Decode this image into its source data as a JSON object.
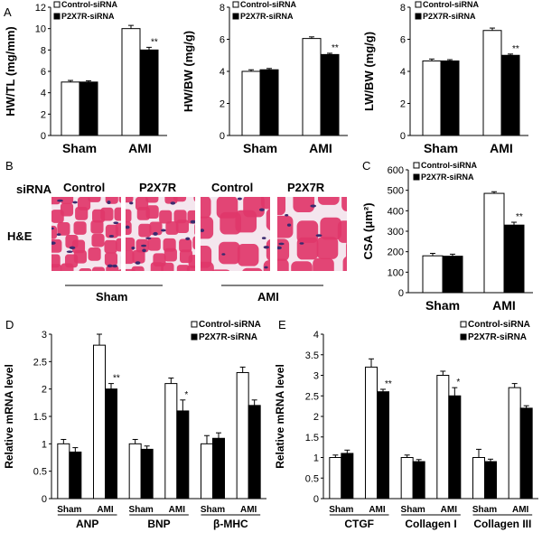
{
  "legend": {
    "control": "Control-siRNA",
    "p2x7r": "P2X7R-siRNA"
  },
  "panel_letters": [
    "A",
    "B",
    "C",
    "D",
    "E"
  ],
  "histology": {
    "row_label": "siRNA",
    "stain_label": "H&E",
    "columns": [
      "Control",
      "P2X7R",
      "Control",
      "P2X7R"
    ],
    "groups": [
      "Sham",
      "AMI"
    ]
  },
  "colors": {
    "control_fill": "#ffffff",
    "p2x7r_fill": "#000000",
    "stain_bg": "#e0376a",
    "membrane": "#f4e6ee",
    "nuclei": "#3b2a6e"
  },
  "chart_data": [
    {
      "id": "A1",
      "type": "bar",
      "categories": [
        "Sham",
        "AMI"
      ],
      "series": [
        {
          "name": "Control-siRNA",
          "values": [
            5.0,
            10.0
          ],
          "errors": [
            0.15,
            0.3
          ]
        },
        {
          "name": "P2X7R-siRNA",
          "values": [
            5.0,
            8.0
          ],
          "errors": [
            0.12,
            0.25
          ]
        }
      ],
      "significance": [
        "",
        "**"
      ],
      "ylabel": "HW/TL (mg/mm)",
      "ylim": [
        0,
        12
      ],
      "yticks": [
        0,
        2,
        4,
        6,
        8,
        10,
        12
      ]
    },
    {
      "id": "A2",
      "type": "bar",
      "categories": [
        "Sham",
        "AMI"
      ],
      "series": [
        {
          "name": "Control-siRNA",
          "values": [
            4.0,
            6.05
          ],
          "errors": [
            0.1,
            0.1
          ]
        },
        {
          "name": "P2X7R-siRNA",
          "values": [
            4.1,
            5.05
          ],
          "errors": [
            0.08,
            0.08
          ]
        }
      ],
      "significance": [
        "",
        "**"
      ],
      "ylabel": "HW/BW (mg/g)",
      "ylim": [
        0,
        8
      ],
      "yticks": [
        0,
        2,
        4,
        6,
        8
      ]
    },
    {
      "id": "A3",
      "type": "bar",
      "categories": [
        "Sham",
        "AMI"
      ],
      "series": [
        {
          "name": "Control-siRNA",
          "values": [
            4.65,
            6.55
          ],
          "errors": [
            0.12,
            0.15
          ]
        },
        {
          "name": "P2X7R-siRNA",
          "values": [
            4.65,
            5.0
          ],
          "errors": [
            0.08,
            0.08
          ]
        }
      ],
      "significance": [
        "",
        "**"
      ],
      "ylabel": "LW/BW (mg/g)",
      "ylim": [
        0,
        8
      ],
      "yticks": [
        0,
        2,
        4,
        6,
        8
      ]
    },
    {
      "id": "C",
      "type": "bar",
      "categories": [
        "Sham",
        "AMI"
      ],
      "series": [
        {
          "name": "Control-siRNA",
          "values": [
            180,
            485
          ],
          "errors": [
            12,
            8
          ]
        },
        {
          "name": "P2X7R-siRNA",
          "values": [
            178,
            330
          ],
          "errors": [
            10,
            14
          ]
        }
      ],
      "significance": [
        "",
        "**"
      ],
      "ylabel": "CSA (μm²)",
      "ylim": [
        0,
        600
      ],
      "yticks": [
        0,
        100,
        200,
        300,
        400,
        500,
        600
      ]
    },
    {
      "id": "D",
      "type": "bar",
      "categories": [
        "Sham",
        "AMI",
        "Sham",
        "AMI",
        "Sham",
        "AMI"
      ],
      "groups": [
        "ANP",
        "BNP",
        "β-MHC"
      ],
      "series": [
        {
          "name": "Control-siRNA",
          "values": [
            1.0,
            2.8,
            1.0,
            2.1,
            1.0,
            2.3
          ],
          "errors": [
            0.08,
            0.2,
            0.08,
            0.1,
            0.15,
            0.1
          ]
        },
        {
          "name": "P2X7R-siRNA",
          "values": [
            0.85,
            2.0,
            0.9,
            1.6,
            1.1,
            1.7
          ],
          "errors": [
            0.08,
            0.1,
            0.06,
            0.2,
            0.1,
            0.1
          ]
        }
      ],
      "significance": [
        "",
        "**",
        "",
        "*",
        "",
        ""
      ],
      "ylabel": "Relative mRNA level",
      "ylim": [
        0,
        3
      ],
      "yticks": [
        0,
        0.5,
        1,
        1.5,
        2,
        2.5,
        3
      ]
    },
    {
      "id": "E",
      "type": "bar",
      "categories": [
        "Sham",
        "AMI",
        "Sham",
        "AMI",
        "Sham",
        "AMI"
      ],
      "groups": [
        "CTGF",
        "Collagen I",
        "Collagen III"
      ],
      "series": [
        {
          "name": "Control-siRNA",
          "values": [
            1.0,
            3.2,
            1.0,
            3.0,
            1.0,
            2.7
          ],
          "errors": [
            0.06,
            0.2,
            0.06,
            0.1,
            0.2,
            0.1
          ]
        },
        {
          "name": "P2X7R-siRNA",
          "values": [
            1.1,
            2.6,
            0.9,
            2.5,
            0.9,
            2.2
          ],
          "errors": [
            0.08,
            0.06,
            0.05,
            0.2,
            0.06,
            0.06
          ]
        }
      ],
      "significance": [
        "",
        "**",
        "",
        "*",
        "",
        ""
      ],
      "ylabel": "Relative mRNA level",
      "ylim": [
        0,
        4
      ],
      "yticks": [
        0,
        0.5,
        1,
        1.5,
        2,
        2.5,
        3,
        3.5,
        4
      ]
    }
  ]
}
